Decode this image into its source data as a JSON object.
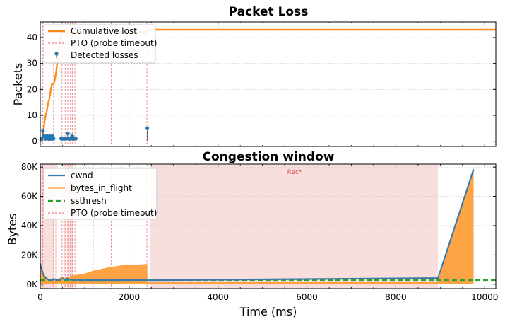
{
  "chart_data": [
    {
      "type": "line",
      "title": "Packet Loss",
      "xlabel": "",
      "ylabel": "Packets",
      "xlim": [
        0,
        10250
      ],
      "ylim": [
        -2,
        46
      ],
      "yticks": [
        0,
        10,
        20,
        30,
        40
      ],
      "ytick_labels": [
        "0",
        "10",
        "20",
        "30",
        "40"
      ],
      "xticks": [
        0,
        2000,
        4000,
        6000,
        8000,
        10000
      ],
      "grid": true,
      "legend_position": "top-left",
      "legend": [
        "Cumulative lost",
        "PTO (probe timeout)",
        "Detected losses"
      ],
      "colors": {
        "cumulative": "#ff8c1a",
        "pto": "#e05c5c",
        "losses": "#1f77b4"
      },
      "series": [
        {
          "name": "Cumulative lost",
          "x": [
            0,
            40,
            60,
            80,
            100,
            120,
            140,
            160,
            180,
            200,
            220,
            240,
            260,
            280,
            300,
            320,
            340,
            360,
            380,
            400,
            420,
            440,
            460,
            480,
            2400,
            2410,
            10250
          ],
          "y": [
            0,
            1,
            3,
            5,
            8,
            10,
            11,
            13,
            15,
            16,
            18,
            20,
            22,
            22,
            22,
            23,
            25,
            27,
            30,
            33,
            36,
            39,
            41,
            42,
            42,
            43,
            43
          ]
        },
        {
          "name": "Detected losses",
          "x": [
            30,
            60,
            90,
            120,
            150,
            180,
            210,
            240,
            270,
            300,
            470,
            500,
            540,
            580,
            620,
            660,
            690,
            720,
            760,
            800,
            2410
          ],
          "y": [
            1,
            4,
            2,
            1,
            2,
            1,
            2,
            1,
            2,
            1,
            1,
            1,
            1,
            1,
            3,
            1,
            1,
            2,
            1,
            1,
            5
          ]
        }
      ],
      "pto_times": [
        60,
        300,
        490,
        560,
        620,
        680,
        720,
        780,
        850,
        960,
        1190,
        1600,
        2400
      ]
    },
    {
      "type": "area",
      "title": "Congestion window",
      "xlabel": "Time (ms)",
      "ylabel": "Bytes",
      "xlim": [
        0,
        10250
      ],
      "ylim": [
        -3000,
        82000
      ],
      "yticks": [
        0,
        20000,
        40000,
        60000,
        80000
      ],
      "ytick_labels": [
        "0K",
        "20K",
        "40K",
        "60K",
        "80K"
      ],
      "xticks": [
        0,
        2000,
        4000,
        6000,
        8000,
        10000
      ],
      "xtick_labels": [
        "0",
        "2000",
        "4000",
        "6000",
        "8000",
        "10000"
      ],
      "grid": true,
      "legend_position": "top-left",
      "legend": [
        "cwnd",
        "bytes_in_flight",
        "ssthresh",
        "PTO (probe timeout)"
      ],
      "annotation": "Rec*",
      "colors": {
        "cwnd": "#3a7ca8",
        "bytes_in_flight": "#ff9933",
        "ssthresh": "#2ca02c",
        "pto": "#e05c5c",
        "recovery": "#f9dede"
      },
      "recovery_periods": [
        [
          0,
          300
        ],
        [
          330,
          380
        ],
        [
          520,
          560
        ],
        [
          600,
          680
        ],
        [
          700,
          730
        ],
        [
          2480,
          8950
        ]
      ],
      "series": [
        {
          "name": "cwnd",
          "x": [
            0,
            40,
            80,
            120,
            160,
            200,
            260,
            320,
            360,
            400,
            450,
            500,
            560,
            600,
            650,
            700,
            750,
            800,
            900,
            1000,
            1500,
            2000,
            2400,
            2420,
            8950,
            9750
          ],
          "y": [
            14000,
            9000,
            6000,
            4500,
            3500,
            3000,
            2800,
            3500,
            2800,
            2900,
            3000,
            4000,
            3200,
            4000,
            3000,
            3400,
            2900,
            2900,
            2800,
            2800,
            2800,
            2800,
            2900,
            2700,
            4200,
            78500
          ]
        },
        {
          "name": "bytes_in_flight",
          "x": [
            0,
            50,
            100,
            200,
            300,
            340,
            400,
            500,
            560,
            600,
            700,
            800,
            1000,
            1200,
            1500,
            1800,
            2100,
            2400,
            2405,
            8950,
            9750
          ],
          "y": [
            10000,
            6000,
            4000,
            3000,
            4000,
            2500,
            3500,
            5000,
            3000,
            4500,
            5500,
            6000,
            7000,
            9000,
            11000,
            12500,
            13000,
            13500,
            1000,
            1200,
            77000
          ]
        },
        {
          "name": "ssthresh",
          "x": [
            0,
            10250
          ],
          "y": [
            2800,
            2800
          ]
        }
      ],
      "pto_times": [
        60,
        300,
        490,
        560,
        620,
        680,
        720,
        780,
        850,
        960,
        1190,
        1600,
        2400
      ]
    }
  ]
}
